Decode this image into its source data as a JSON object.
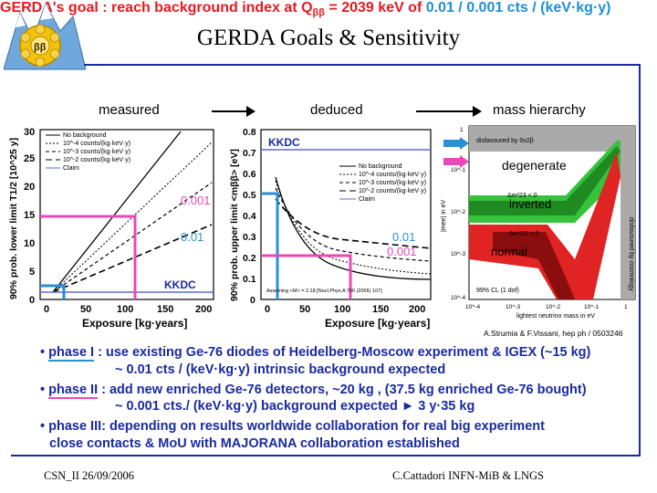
{
  "logo": {
    "label": "ββ"
  },
  "title": "GERDA Goals & Sensitivity",
  "goal": {
    "prefix": "GERDA's goal : reach background index at Q",
    "sub": "ββ",
    "middle": " = 2039 keV of ",
    "value": "0.01 / 0.001 cts / (keV·kg·y)"
  },
  "headers": {
    "measured": "measured",
    "deduced": "deduced",
    "mass_hierarchy": "mass hierarchy"
  },
  "plot1": {
    "ylabel": "90% prob. lower limit T1/2 [10^25 y]",
    "xlabel": "Exposure [kg·years]",
    "xticks": [
      "0",
      "50",
      "100",
      "150",
      "200"
    ],
    "yticks": [
      "0",
      "5",
      "10",
      "15",
      "20",
      "25",
      "30"
    ],
    "legend": [
      "No background",
      "10^-4 counts/(kg·keV·y)",
      "10^-3 counts/(kg·keV·y)",
      "10^-2 counts/(kg·keV·y)",
      "Claim"
    ],
    "labels": {
      "a": "0.001",
      "b": "0.01",
      "kkdc": "KKDC"
    }
  },
  "plot2": {
    "ylabel": "90% prob. upper limit <mββ> [eV]",
    "xlabel": "Exposure [kg·years]",
    "xticks": [
      "0",
      "50",
      "100",
      "150",
      "200"
    ],
    "yticks": [
      "0",
      "0.1",
      "0.2",
      "0.3",
      "0.4",
      "0.5",
      "0.6",
      "0.7",
      "0.8"
    ],
    "legend": [
      "No background",
      "10^-4 counts/(kg·keV·y)",
      "10^-3 counts/(kg·keV·y)",
      "10^-2 counts/(kg·keV·y)",
      "Claim"
    ],
    "labels": {
      "kkdc": "KKDC",
      "a": "0.01",
      "b": "0.001"
    },
    "note": "Assuming <M> = 2.18 [Nucl.Phys.A 766 (2006) 107]"
  },
  "plot3": {
    "disfavoured_top": "disfavoured by 0ν2β",
    "disfavoured_side": "disfavoured by cosmology",
    "degenerate": "degenerate",
    "inverted": "inverted",
    "inverted_eq": "Δm²23 < 0",
    "normal": "normal",
    "normal_eq": "Δm²23 > 0",
    "cl": "99% CL (1 dof)",
    "xlabel": "lightest neutrino mass in eV",
    "ylabel": "|mee| in eV",
    "xticks": [
      "10^-4",
      "10^-3",
      "10^-2",
      "10^-1",
      "1"
    ],
    "yticks": [
      "1",
      "10^-1",
      "10^-2",
      "10^-3",
      "10^-4"
    ],
    "credit": "A.Strumia & F.Vissani, hep ph / 0503246"
  },
  "bullets": [
    {
      "dot": "•",
      "lead": "phase I",
      "text": " : use existing Ge-76 diodes of Heidelberg-Moscow experiment & IGEX (~15 kg)"
    },
    {
      "text": "~ 0.01 cts / (keV·kg·y)  intrinsic background expected"
    },
    {
      "dot": "•",
      "lead": "phase II",
      "text": " : add new enriched Ge-76 detectors, ~20 kg ,  (37.5 kg enriched Ge-76 bought)"
    },
    {
      "text": "~ 0.001 cts./ (keV·kg·y) background expected      ► 3 y·35 kg"
    },
    {
      "dot": "•",
      "lead": "phase III",
      "text": ": depending on results worldwide collaboration for real big experiment"
    },
    {
      "text": "close contacts & MoU with MAJORANA collaboration established"
    }
  ],
  "footer": {
    "left": "CSN_II 26/09/2006",
    "right": "C.Cattadori INFN-MiB & LNGS"
  }
}
